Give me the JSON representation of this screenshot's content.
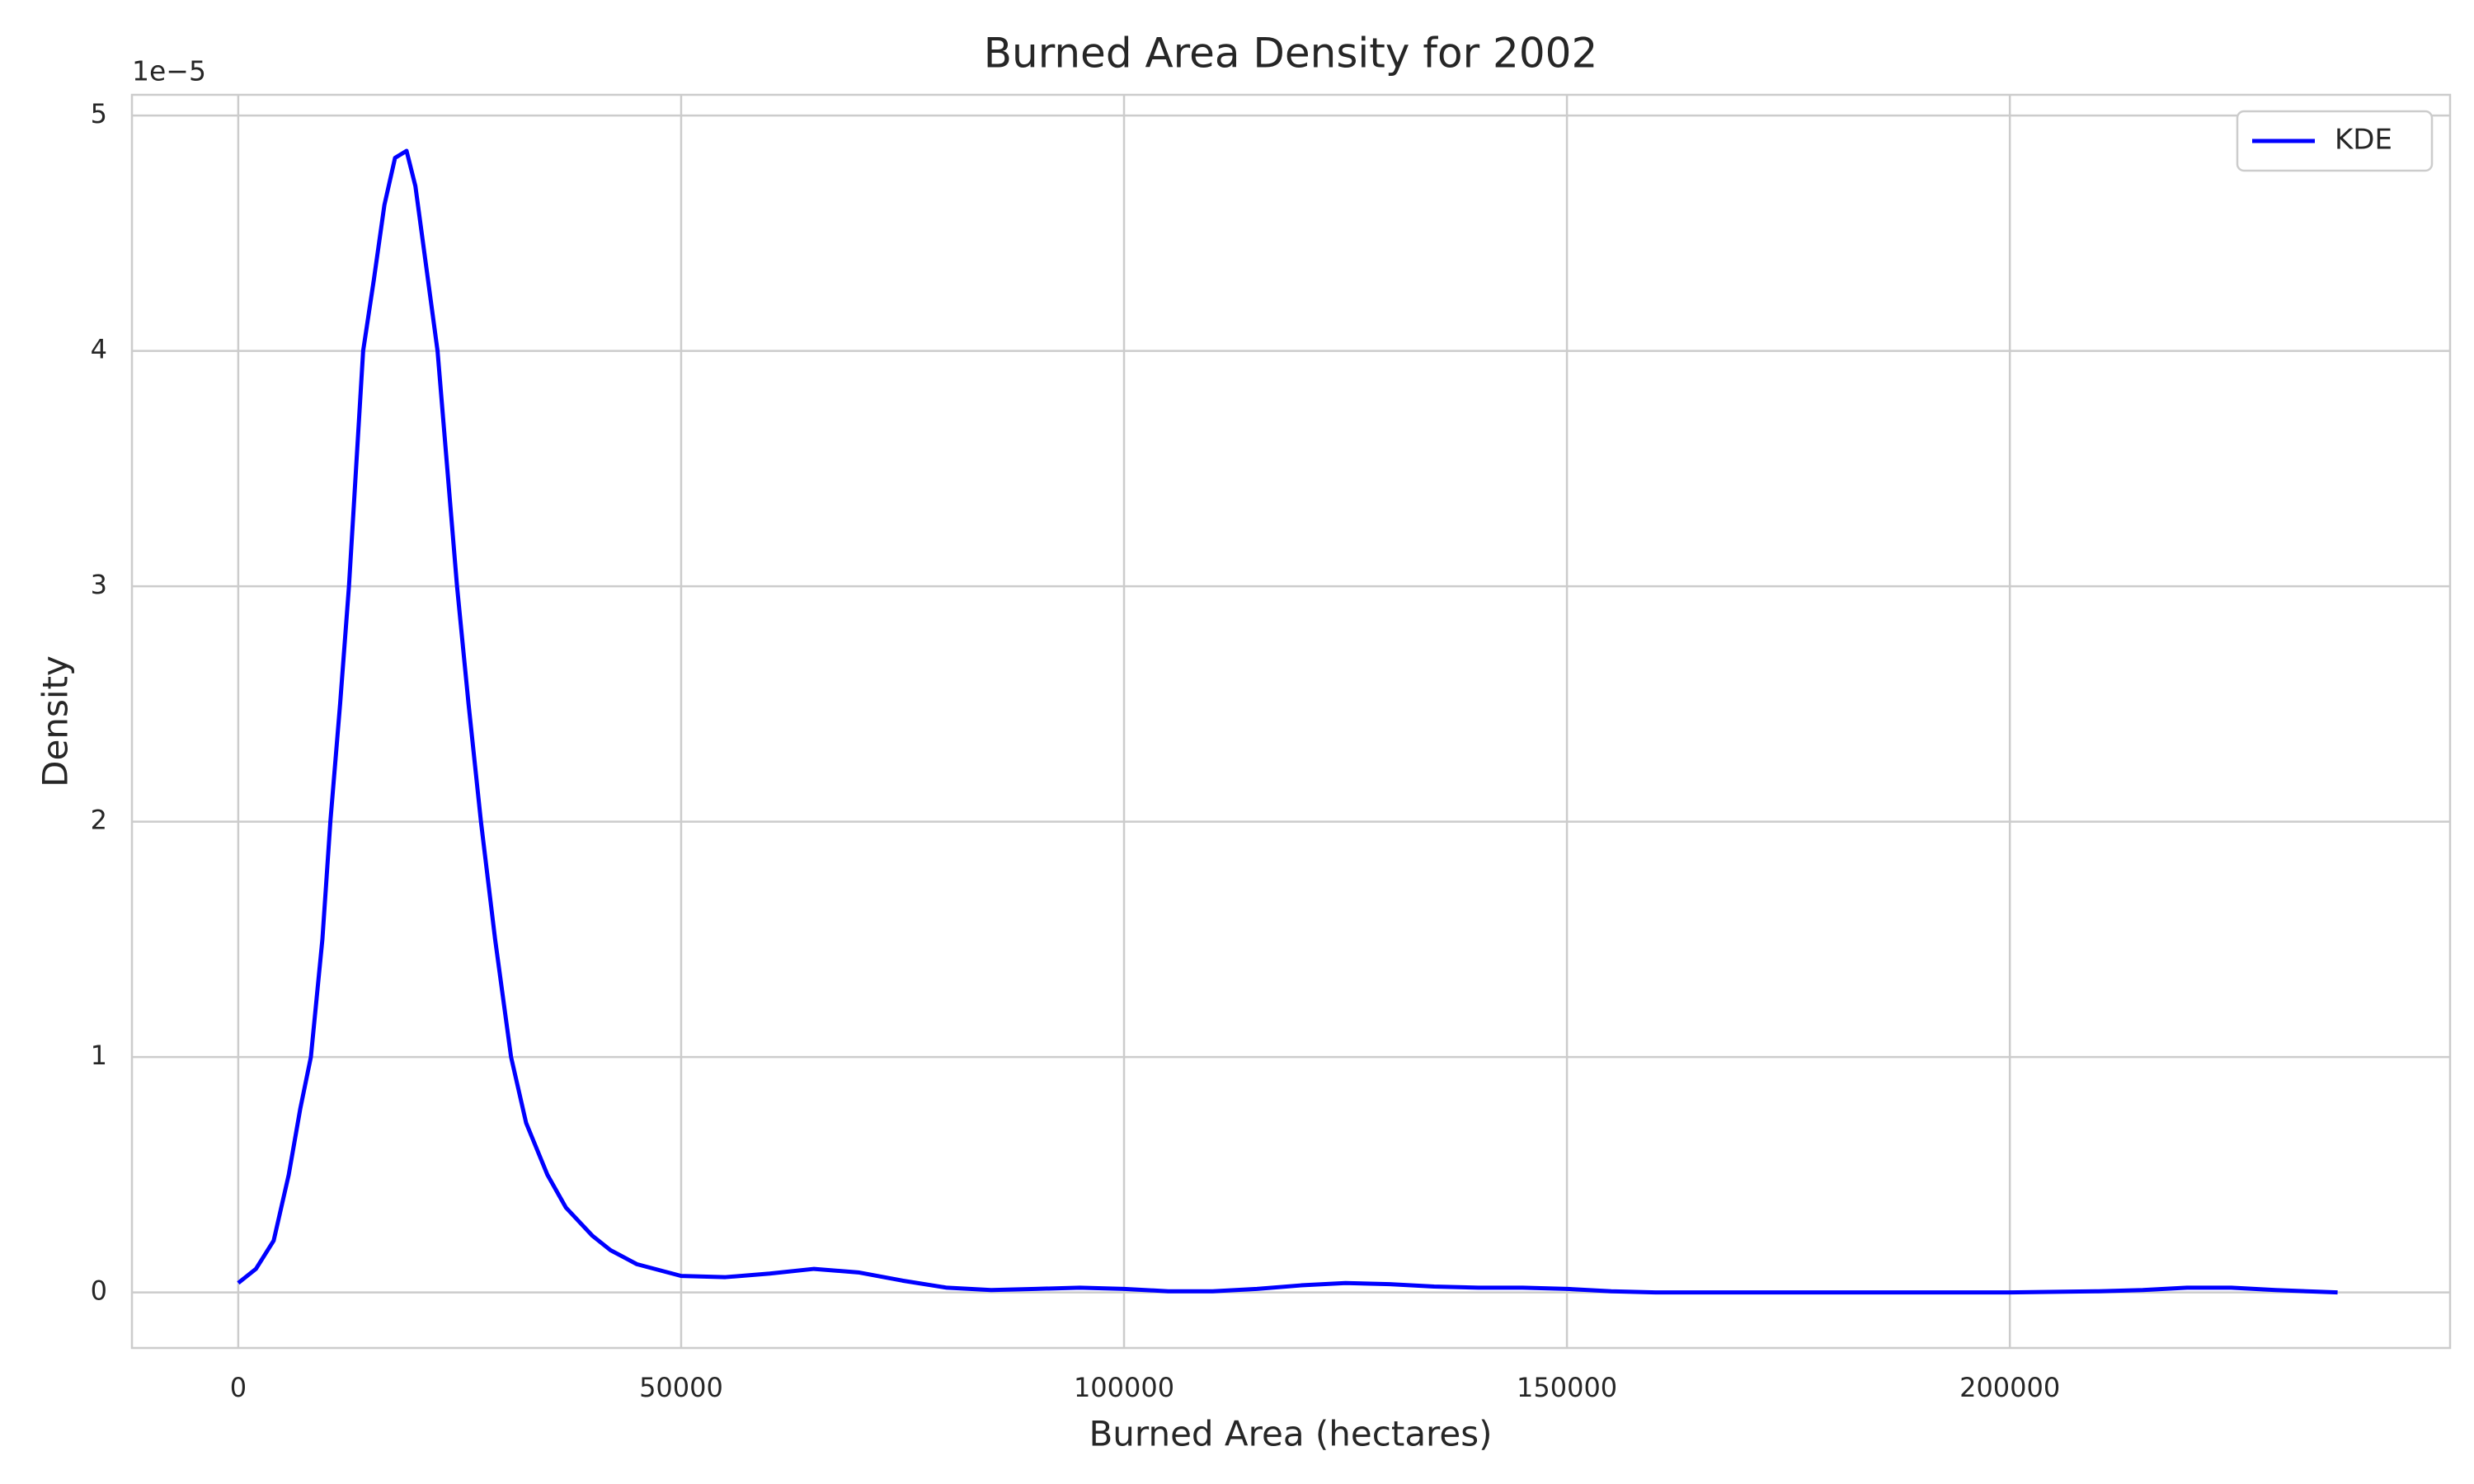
{
  "chart_data": {
    "type": "line",
    "title": "Burned Area Density for 2002",
    "x_label": "Burned Area (hectares)",
    "y_label": "Density",
    "y_offset_label": "1e−5",
    "x": [
      0,
      2000,
      4000,
      5700,
      7000,
      8200,
      9500,
      10400,
      11500,
      12500,
      13300,
      14100,
      15300,
      16500,
      17700,
      19000,
      20000,
      21000,
      22500,
      23600,
      24700,
      26000,
      27400,
      29000,
      30800,
      32500,
      34900,
      37000,
      40000,
      42000,
      45000,
      50000,
      55000,
      60000,
      65000,
      70000,
      75000,
      80000,
      85000,
      90000,
      95000,
      100000,
      105000,
      110000,
      115000,
      120000,
      125000,
      130000,
      135000,
      140000,
      145000,
      150000,
      155000,
      160000,
      170000,
      180000,
      190000,
      200000,
      210000,
      215000,
      220000,
      225000,
      230000,
      237000
    ],
    "series": [
      {
        "name": "KDE",
        "color": "#0000ff",
        "values": [
          0.04,
          0.1,
          0.22,
          0.5,
          0.78,
          1.0,
          1.5,
          2.0,
          2.5,
          3.0,
          3.5,
          4.0,
          4.3,
          4.62,
          4.82,
          4.85,
          4.7,
          4.42,
          4.0,
          3.5,
          3.0,
          2.5,
          2.0,
          1.5,
          1.0,
          0.72,
          0.5,
          0.36,
          0.24,
          0.18,
          0.12,
          0.07,
          0.065,
          0.08,
          0.1,
          0.085,
          0.05,
          0.02,
          0.01,
          0.015,
          0.02,
          0.015,
          0.005,
          0.005,
          0.015,
          0.03,
          0.04,
          0.035,
          0.025,
          0.02,
          0.02,
          0.015,
          0.005,
          0.0,
          0.0,
          0.0,
          0.0,
          0.0,
          0.005,
          0.01,
          0.02,
          0.02,
          0.01,
          0.0
        ]
      }
    ],
    "xlim": [
      -12000,
      249700
    ],
    "ylim": [
      -0.236,
      5.088
    ],
    "xticks": [
      0,
      50000,
      100000,
      150000,
      200000
    ],
    "yticks": [
      0,
      1,
      2,
      3,
      4,
      5
    ],
    "grid": true,
    "legend": "upper right"
  }
}
